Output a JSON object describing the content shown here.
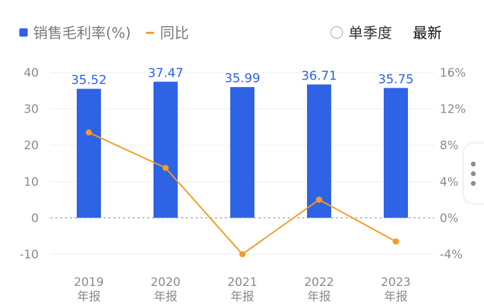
{
  "legend": {
    "margin_label": "销售毛利率(%)",
    "yoy_label": "同比",
    "margin_color": "#2e63e6",
    "yoy_color": "#f59a23"
  },
  "controls": {
    "single_quarter_label": "单季度",
    "latest_label": "最新"
  },
  "side_handle": {
    "icon": "more-vertical-icon"
  },
  "chart_data": {
    "type": "bar",
    "categories": [
      [
        "2019",
        "年报"
      ],
      [
        "2020",
        "年报"
      ],
      [
        "2021",
        "年报"
      ],
      [
        "2022",
        "年报"
      ],
      [
        "2023",
        "年报"
      ]
    ],
    "series": [
      {
        "name": "销售毛利率(%)",
        "type": "bar",
        "axis": "left",
        "color": "#2e63e6",
        "values": [
          35.52,
          37.47,
          35.99,
          36.71,
          35.75
        ]
      },
      {
        "name": "同比",
        "type": "line",
        "axis": "right",
        "color": "#f59a23",
        "values": [
          9.4,
          5.5,
          -4.0,
          2.0,
          -2.6
        ]
      }
    ],
    "y_left": {
      "min": -10,
      "max": 40,
      "ticks": [
        "-10",
        "0",
        "10",
        "20",
        "30",
        "40"
      ]
    },
    "y_right": {
      "min": -4,
      "max": 16,
      "ticks": [
        "-4%",
        "0%",
        "4%",
        "8%",
        "12%",
        "16%"
      ]
    },
    "zero_line": "dashed",
    "legend_position": "top-left",
    "data_labels": [
      "35.52",
      "37.47",
      "35.99",
      "36.71",
      "35.75"
    ]
  }
}
